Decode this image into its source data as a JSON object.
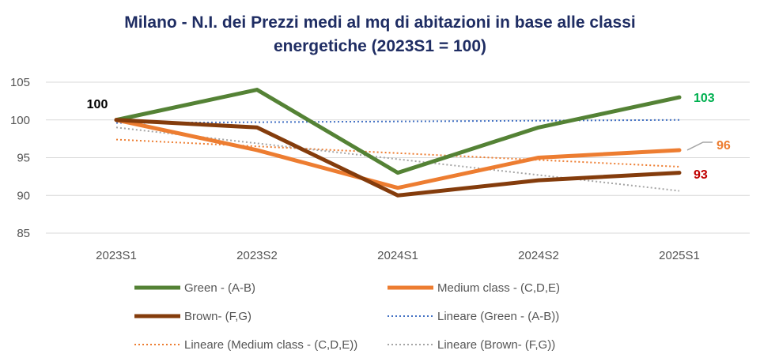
{
  "chart_data": {
    "type": "line",
    "title_line1": "Milano - N.I. dei Prezzi medi al mq di abitazioni in base alle classi",
    "title_line2": "energetiche (2023S1 = 100)",
    "categories": [
      "2023S1",
      "2023S2",
      "2024S1",
      "2024S2",
      "2025S1"
    ],
    "ylim": [
      85,
      105
    ],
    "yticks": [
      85,
      90,
      95,
      100,
      105
    ],
    "grid": true,
    "legend_position": "bottom",
    "series": [
      {
        "name": "Green - (A-B)",
        "values": [
          100,
          104,
          93,
          99,
          103
        ],
        "color": "#548235",
        "style": "solid"
      },
      {
        "name": "Medium class - (C,D,E)",
        "values": [
          100,
          96,
          91,
          95,
          96
        ],
        "color": "#ed7d31",
        "style": "solid"
      },
      {
        "name": "Brown- (F,G)",
        "values": [
          100,
          99,
          90,
          92,
          93
        ],
        "color": "#843c0c",
        "style": "solid"
      },
      {
        "name": "Lineare (Green - (A-B))",
        "values": [
          99.6,
          99.7,
          99.8,
          99.9,
          100.0
        ],
        "color": "#4472c4",
        "style": "dotted"
      },
      {
        "name": "Lineare (Medium class - (C,D,E))",
        "values": [
          97.4,
          96.5,
          95.6,
          94.7,
          93.8
        ],
        "color": "#ed7d31",
        "style": "dotted"
      },
      {
        "name": "Lineare (Brown- (F,G))",
        "values": [
          99.0,
          96.9,
          94.8,
          92.7,
          90.6
        ],
        "color": "#a5a5a5",
        "style": "dotted"
      }
    ],
    "annotations": [
      {
        "text": "100",
        "color": "#000000"
      },
      {
        "text": "103",
        "color": "#00b050"
      },
      {
        "text": "96",
        "color": "#ed7d31"
      },
      {
        "text": "93",
        "color": "#c00000"
      }
    ]
  }
}
